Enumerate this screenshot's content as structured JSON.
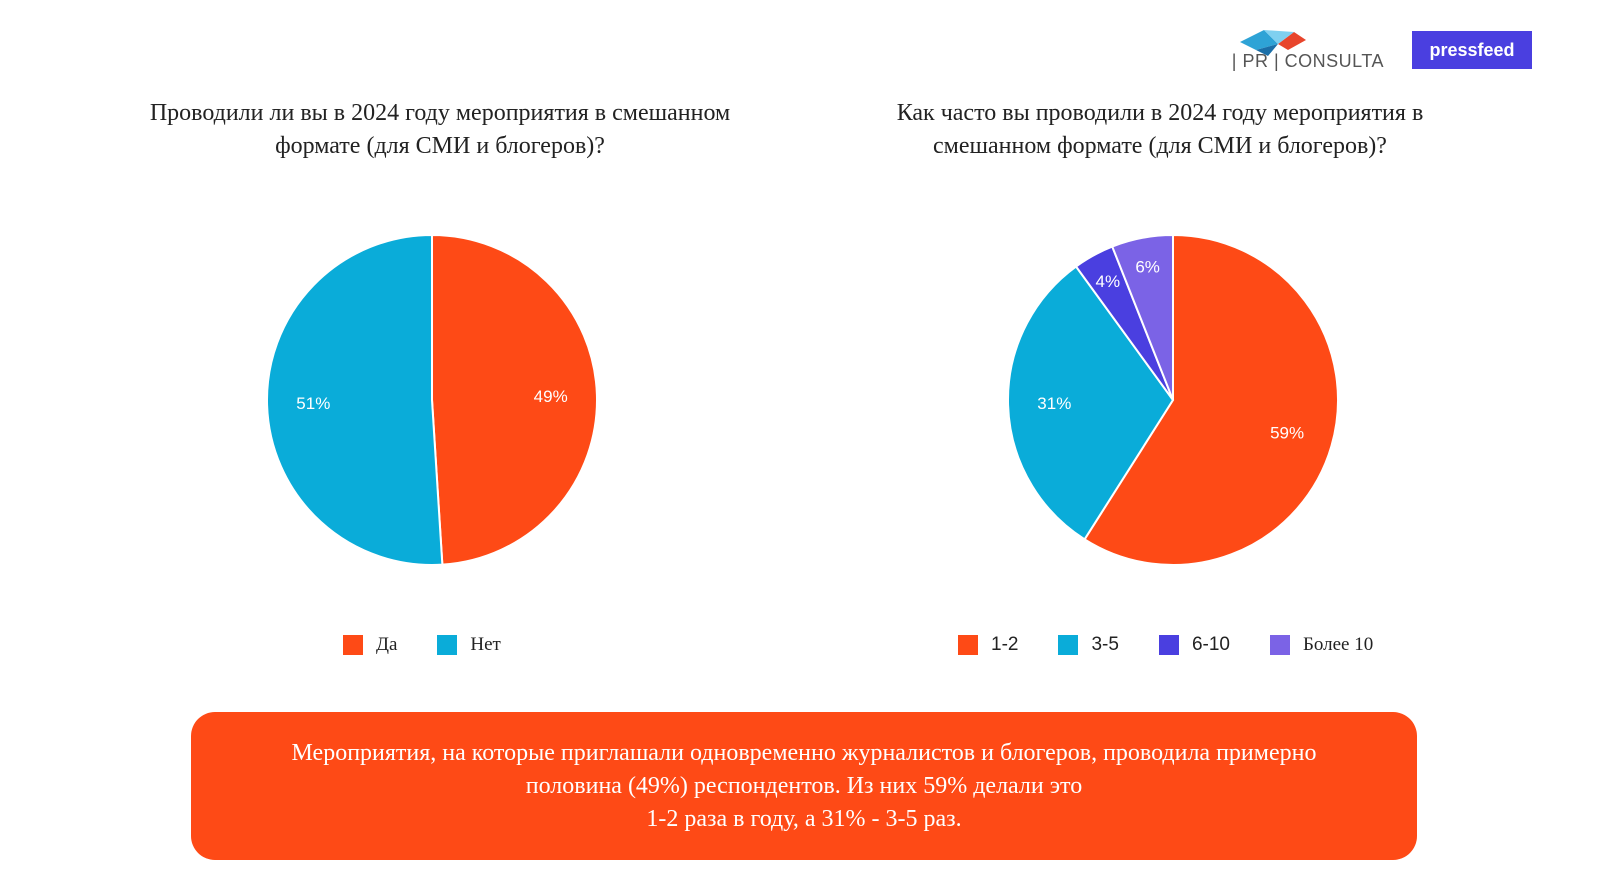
{
  "logos": {
    "prconsulta": "| PR | CONSULTA",
    "pressfeed": "pressfeed"
  },
  "colors": {
    "orange": "#fe4a16",
    "cyan": "#0aacd9",
    "indigo": "#4a3fe0",
    "purple": "#7b63e6"
  },
  "chart_data": [
    {
      "type": "pie",
      "title": "Проводили ли вы в 2024 году мероприятия в смешанном формате (для СМИ и блогеров)?",
      "categories": [
        "Да",
        "Нет"
      ],
      "values": [
        49,
        51
      ],
      "labels": [
        "49%",
        "51%"
      ],
      "colors": [
        "#fe4a16",
        "#0aacd9"
      ],
      "legend_position": "bottom"
    },
    {
      "type": "pie",
      "title": "Как часто вы проводили в 2024 году мероприятия в смешанном формате (для СМИ и блогеров)?",
      "categories": [
        "1-2",
        "3-5",
        "6-10",
        "Более 10"
      ],
      "values": [
        59,
        31,
        4,
        6
      ],
      "labels": [
        "59%",
        "31%",
        "4%",
        "6%"
      ],
      "colors": [
        "#fe4a16",
        "#0aacd9",
        "#4a3fe0",
        "#7b63e6"
      ],
      "legend_position": "bottom"
    }
  ],
  "callout": {
    "line1": "Мероприятия, на которые приглашали одновременно журналистов и блогеров, проводила примерно",
    "line2": "половина (49%) респондентов. Из них 59% делали это",
    "line3": "1-2 раза в году, а 31% - 3-5 раз."
  }
}
